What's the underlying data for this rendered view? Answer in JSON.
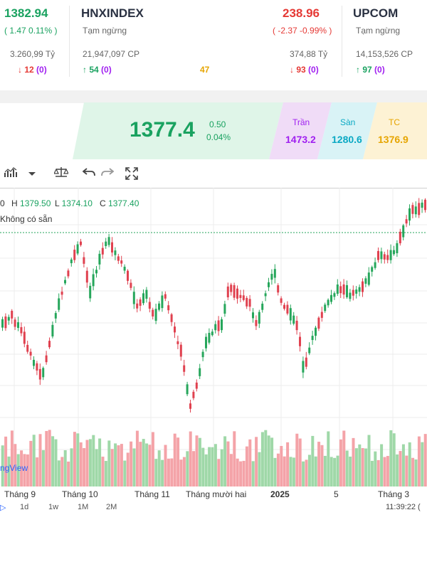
{
  "indices": [
    {
      "value": "1382.94",
      "change": "( 1.47 0.11% )",
      "volume_value": "3.260,99 Tỷ",
      "down": "12",
      "down_ceiling": "(0)"
    },
    {
      "name": "HNXINDEX",
      "status": "Tạm ngừng",
      "volume": "21,947,097 CP",
      "up": "54",
      "up_ceiling": "(0)",
      "unchanged": "47"
    },
    {
      "value": "238.96",
      "change": "( -2.37 -0.99% )",
      "volume_value": "374,88 Tỷ",
      "down": "93",
      "down_ceiling": "(0)"
    },
    {
      "name": "UPCOM",
      "status": "Tạm ngừng",
      "volume": "14,153,526 CP",
      "up": "97",
      "up_ceiling": "(0)"
    }
  ],
  "price_panel": {
    "last": "1377.4",
    "change": "0.50",
    "change_pct": "0.04%",
    "ceiling_label": "Trần",
    "ceiling": "1473.2",
    "floor_label": "Sàn",
    "floor": "1280.6",
    "ref_label": "TC",
    "ref": "1376.9"
  },
  "toolbar_icons": [
    "chart-type-icon",
    "dropdown-icon",
    "compare-icon",
    "undo-icon",
    "redo-icon",
    "fullscreen-icon"
  ],
  "ohlc": {
    "o": "0",
    "h_label": "H",
    "h": "1379.50",
    "l_label": "L",
    "l": "1374.10",
    "c_label": "C",
    "c": "1377.40"
  },
  "no_data": "Không có sẵn",
  "watermark": "ngView",
  "x_labels": [
    "Tháng 9",
    "Tháng 10",
    "Tháng 11",
    "Tháng mười hai",
    "2025",
    "5",
    "Tháng 3"
  ],
  "timeframes": [
    "1d",
    "1w",
    "1M",
    "2M"
  ],
  "timestamp": "11:39:22 (",
  "colors": {
    "up": "#26a65b",
    "down": "#e0414f",
    "ceiling": "#a020f0",
    "floor": "#0aa9c4",
    "ref": "#e6a500"
  }
}
